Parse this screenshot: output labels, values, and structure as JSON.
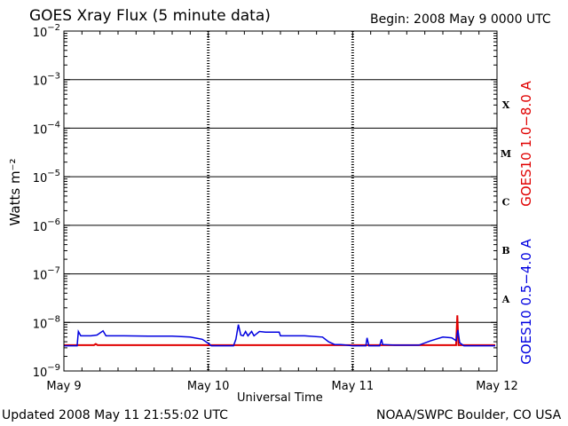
{
  "header": {
    "title": "GOES Xray Flux (5 minute data)",
    "begin": "Begin:  2008 May 9 0000 UTC"
  },
  "footer": {
    "updated": "Updated 2008 May 11 21:55:02 UTC",
    "org": "NOAA/SWPC Boulder, CO USA"
  },
  "chart_data": {
    "type": "line",
    "ylabel": "Watts m⁻²",
    "xlabel": "Universal Time",
    "yscale": "log",
    "ylim": [
      1e-09,
      0.01
    ],
    "xlim": [
      0,
      72
    ],
    "x_unit": "hours since 2008 May 9 0000 UTC",
    "x_ticks": [
      {
        "value": 0,
        "label": "May 9"
      },
      {
        "value": 24,
        "label": "May 10"
      },
      {
        "value": 48,
        "label": "May 11"
      },
      {
        "value": 72,
        "label": "May 12"
      }
    ],
    "y_ticks": [
      {
        "exp": -9,
        "label": "10",
        "sup": "−9"
      },
      {
        "exp": -8,
        "label": "10",
        "sup": "−8"
      },
      {
        "exp": -7,
        "label": "10",
        "sup": "−7"
      },
      {
        "exp": -6,
        "label": "10",
        "sup": "−6"
      },
      {
        "exp": -5,
        "label": "10",
        "sup": "−5"
      },
      {
        "exp": -4,
        "label": "10",
        "sup": "−4"
      },
      {
        "exp": -3,
        "label": "10",
        "sup": "−3"
      },
      {
        "exp": -2,
        "label": "10",
        "sup": "−2"
      }
    ],
    "flare_classes": [
      {
        "label": "A",
        "exp": -8
      },
      {
        "label": "B",
        "exp": -7
      },
      {
        "label": "C",
        "exp": -6
      },
      {
        "label": "M",
        "exp": -5
      },
      {
        "label": "X",
        "exp": -4
      }
    ],
    "grid": {
      "horizontal": true,
      "vertical_dotted_at_days": true
    },
    "colors": {
      "long": "#e00000",
      "short": "#0000e0"
    },
    "series": [
      {
        "name": "GOES10 1.0−8.0 A",
        "color": "#e00000",
        "points": [
          [
            0,
            3.4e-09
          ],
          [
            3,
            3.4e-09
          ],
          [
            5,
            3.4e-09
          ],
          [
            5.3,
            3.6e-09
          ],
          [
            5.6,
            3.4e-09
          ],
          [
            12,
            3.4e-09
          ],
          [
            24,
            3.4e-09
          ],
          [
            36,
            3.4e-09
          ],
          [
            48,
            3.4e-09
          ],
          [
            60,
            3.4e-09
          ],
          [
            65.2,
            3.4e-09
          ],
          [
            65.4,
            1.4e-08
          ],
          [
            65.6,
            3.4e-09
          ],
          [
            71.7,
            3.4e-09
          ]
        ]
      },
      {
        "name": "GOES10 0.5−4.0 A",
        "color": "#0000e0",
        "points": [
          [
            0,
            3.3e-09
          ],
          [
            2.2,
            3.3e-09
          ],
          [
            2.4,
            6.5e-09
          ],
          [
            2.8,
            5.3e-09
          ],
          [
            4.5,
            5.3e-09
          ],
          [
            5.5,
            5.5e-09
          ],
          [
            6.5,
            6.7e-09
          ],
          [
            7.0,
            5.3e-09
          ],
          [
            10,
            5.3e-09
          ],
          [
            14,
            5.2e-09
          ],
          [
            18,
            5.2e-09
          ],
          [
            21,
            5e-09
          ],
          [
            23,
            4.5e-09
          ],
          [
            24,
            3.7e-09
          ],
          [
            24.5,
            3.3e-09
          ],
          [
            28.2,
            3.3e-09
          ],
          [
            28.6,
            4.5e-09
          ],
          [
            29.0,
            9e-09
          ],
          [
            29.4,
            5.5e-09
          ],
          [
            29.8,
            5.3e-09
          ],
          [
            30.2,
            6.5e-09
          ],
          [
            30.6,
            5.3e-09
          ],
          [
            31.2,
            6.5e-09
          ],
          [
            31.6,
            5.3e-09
          ],
          [
            32.5,
            6.5e-09
          ],
          [
            33.5,
            6.3e-09
          ],
          [
            35.8,
            6.3e-09
          ],
          [
            36.0,
            5.3e-09
          ],
          [
            40,
            5.3e-09
          ],
          [
            43,
            5e-09
          ],
          [
            44,
            4e-09
          ],
          [
            45,
            3.5e-09
          ],
          [
            46,
            3.5e-09
          ],
          [
            47,
            3.4e-09
          ],
          [
            48,
            3.3e-09
          ],
          [
            50.2,
            3.3e-09
          ],
          [
            50.4,
            4.8e-09
          ],
          [
            50.7,
            3.3e-09
          ],
          [
            52.5,
            3.3e-09
          ],
          [
            52.8,
            4.5e-09
          ],
          [
            53.0,
            3.5e-09
          ],
          [
            55,
            3.4e-09
          ],
          [
            59,
            3.4e-09
          ],
          [
            61,
            4.2e-09
          ],
          [
            63,
            5e-09
          ],
          [
            64.5,
            4.8e-09
          ],
          [
            65.2,
            4.2e-09
          ],
          [
            65.5,
            7e-09
          ],
          [
            65.8,
            3.8e-09
          ],
          [
            66.5,
            3.3e-09
          ],
          [
            71.7,
            3.3e-09
          ]
        ]
      }
    ]
  }
}
